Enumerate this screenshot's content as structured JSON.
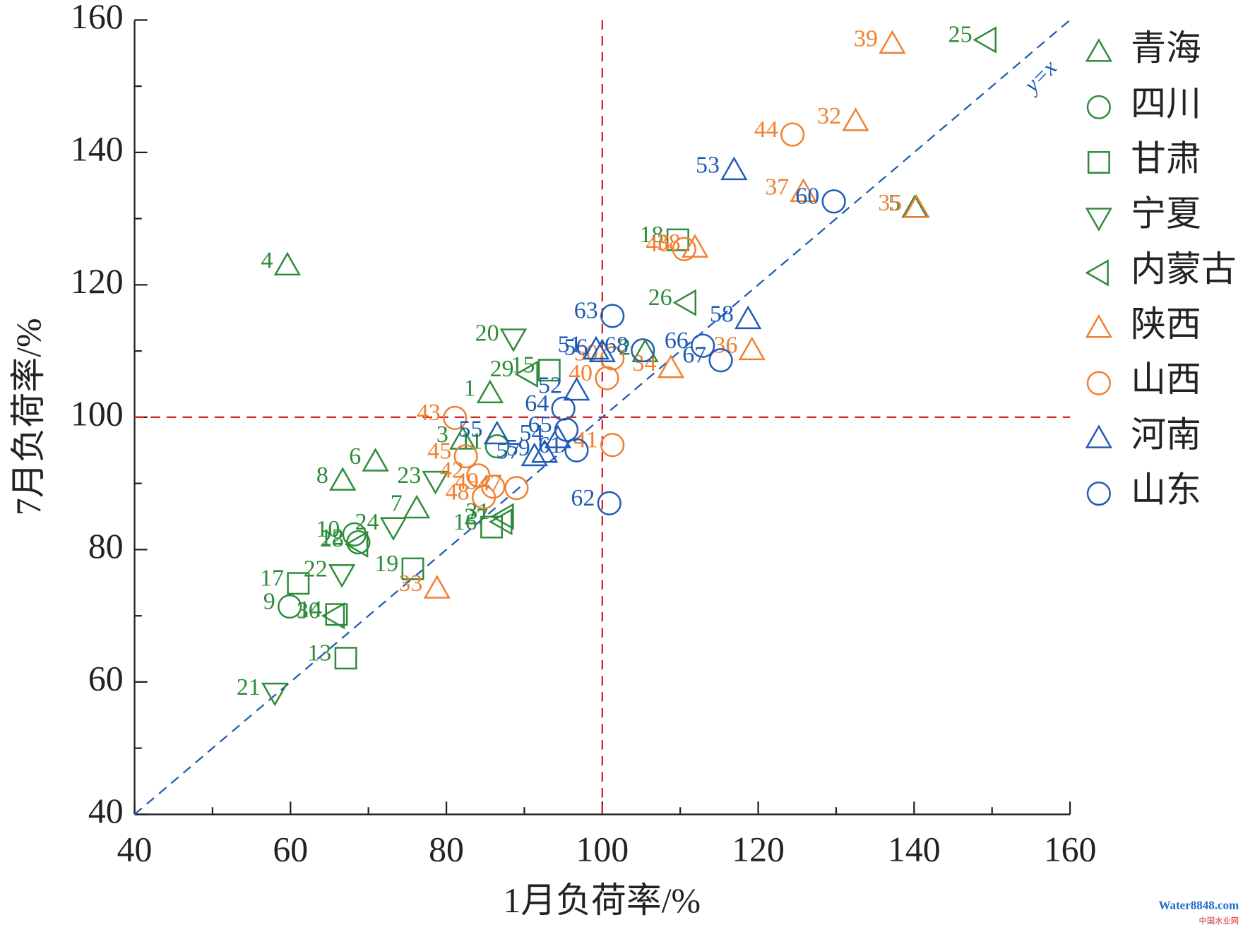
{
  "chart_data": {
    "type": "scatter",
    "xlabel": "1月负荷率/%",
    "ylabel": "7月负荷率/%",
    "xlim": [
      40,
      160
    ],
    "ylim": [
      40,
      160
    ],
    "xticks": [
      40,
      60,
      80,
      100,
      120,
      140,
      160
    ],
    "yticks": [
      40,
      60,
      80,
      100,
      120,
      140,
      160
    ],
    "xminorticks": [
      50,
      70,
      90,
      110,
      130,
      150
    ],
    "yminorticks": [
      50,
      70,
      90,
      110,
      130,
      150
    ],
    "vline": 100,
    "hline": 100,
    "diagonal_label": "y=x",
    "series": [
      {
        "name": "青海",
        "color": "#2e8b3a",
        "marker": "triangle-up",
        "labels": [
          "1",
          "2",
          "3",
          "4",
          "5",
          "6",
          "7",
          "8"
        ],
        "x": [
          85.6,
          105.5,
          82.1,
          59.6,
          140.1,
          70.9,
          76.2,
          66.7
        ],
        "y": [
          103.6,
          109.8,
          96.6,
          122.9,
          131.6,
          93.3,
          86.2,
          90.4
        ]
      },
      {
        "name": "四川",
        "color": "#2e8b3a",
        "marker": "circle",
        "labels": [
          "9",
          "10",
          "11",
          "12"
        ],
        "x": [
          59.9,
          68.2,
          86.5,
          68.7
        ],
        "y": [
          71.4,
          82.3,
          95.6,
          81.1
        ]
      },
      {
        "name": "甘肃",
        "color": "#2e8b3a",
        "marker": "square",
        "labels": [
          "13",
          "14",
          "15",
          "16",
          "17",
          "18",
          "19"
        ],
        "x": [
          67.1,
          65.9,
          93.2,
          85.8,
          61.0,
          109.7,
          75.7
        ],
        "y": [
          63.6,
          70.2,
          107.1,
          83.4,
          74.9,
          126.8,
          77.1
        ]
      },
      {
        "name": "宁夏",
        "color": "#2e8b3a",
        "marker": "triangle-down",
        "labels": [
          "20",
          "21",
          "22",
          "23",
          "24"
        ],
        "x": [
          88.6,
          58.0,
          66.6,
          78.6,
          73.2
        ],
        "y": [
          111.9,
          58.4,
          76.3,
          90.4,
          83.4
        ]
      },
      {
        "name": "内蒙古",
        "color": "#2e8b3a",
        "marker": "triangle-left",
        "labels": [
          "25",
          "26",
          "27",
          "28",
          "29",
          "30",
          "31"
        ],
        "x": [
          149.3,
          110.8,
          87.2,
          68.7,
          90.5,
          65.7,
          87.4
        ],
        "y": [
          157.0,
          117.3,
          84.2,
          80.8,
          106.5,
          70.0,
          85.0
        ]
      },
      {
        "name": "陕西",
        "color": "#f08030",
        "marker": "triangle-up",
        "labels": [
          "32",
          "33",
          "34",
          "35",
          "36",
          "37",
          "38",
          "39"
        ],
        "x": [
          132.5,
          78.8,
          108.8,
          140.3,
          119.2,
          125.8,
          111.9,
          137.2
        ],
        "y": [
          144.7,
          74.1,
          107.4,
          131.6,
          110.1,
          134.0,
          125.6,
          156.4
        ]
      },
      {
        "name": "山西",
        "color": "#f08030",
        "marker": "circle",
        "labels": [
          "40",
          "41",
          "42",
          "43",
          "44",
          "45",
          "46",
          "47",
          "48",
          "49",
          "50"
        ],
        "x": [
          100.6,
          101.3,
          84.1,
          81.1,
          124.4,
          82.5,
          110.5,
          89.0,
          84.8,
          86.0,
          101.3
        ],
        "y": [
          105.9,
          95.8,
          91.2,
          99.9,
          142.7,
          94.1,
          125.4,
          89.3,
          87.9,
          89.5,
          108.9
        ]
      },
      {
        "name": "河南",
        "color": "#1f5bb5",
        "marker": "triangle-up",
        "labels": [
          "51",
          "52",
          "53",
          "54",
          "55",
          "56",
          "57",
          "58",
          "59"
        ],
        "x": [
          99.2,
          96.7,
          116.9,
          94.3,
          86.5,
          100.0,
          91.3,
          118.7,
          92.6
        ],
        "y": [
          110.2,
          104.0,
          137.3,
          96.8,
          97.4,
          109.8,
          94.1,
          114.8,
          94.6
        ]
      },
      {
        "name": "山东",
        "color": "#1f5bb5",
        "marker": "circle",
        "labels": [
          "60",
          "61",
          "62",
          "63",
          "64",
          "65",
          "66",
          "67",
          "68"
        ],
        "x": [
          129.7,
          96.7,
          100.9,
          101.3,
          95.0,
          95.4,
          112.9,
          115.2,
          105.2
        ],
        "y": [
          132.6,
          95.0,
          87.0,
          115.3,
          101.3,
          98.1,
          110.8,
          108.6,
          110.1
        ]
      }
    ]
  },
  "watermark": {
    "site": "Water8848.com",
    "name": "中国水业网"
  }
}
